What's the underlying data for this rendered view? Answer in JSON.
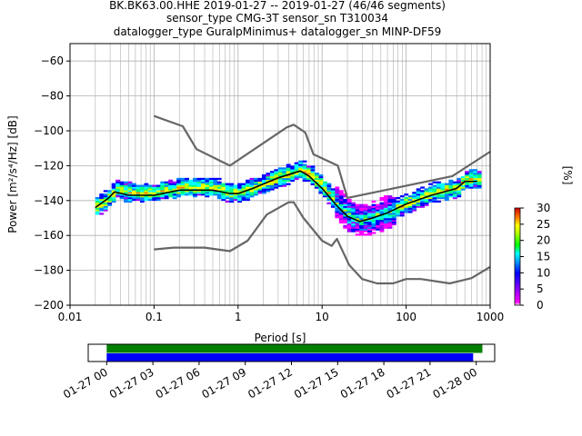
{
  "title": {
    "line1": "BK.BK63.00.HHE   2019-01-27 -- 2019-01-27  (46/46 segments)",
    "line2": "sensor_type CMG-3T sensor_sn T310034",
    "line3": "datalogger_type GuralpMinimus+ datalogger_sn MINP-DF59"
  },
  "chart_data": [
    {
      "type": "heatmap",
      "xlabel": "Period [s]",
      "ylabel": "Power [m²/s⁴/Hz] [dB]",
      "x_scale": "log",
      "xlim": [
        0.01,
        1000
      ],
      "ylim": [
        -200,
        -50
      ],
      "grid": true,
      "x_ticks": [
        0.01,
        0.1,
        1,
        10,
        100,
        1000
      ],
      "x_tick_labels": [
        "0.01",
        "0.1",
        "1",
        "10",
        "100",
        "1000"
      ],
      "y_ticks": [
        -200,
        -180,
        -160,
        -140,
        -120,
        -100,
        -80,
        -60
      ],
      "y_tick_labels": [
        "−200",
        "−180",
        "−160",
        "−140",
        "−120",
        "−100",
        "−80",
        "−60"
      ],
      "colorbar": {
        "label": "[%]",
        "range": [
          0,
          30
        ],
        "ticks": [
          0,
          5,
          10,
          15,
          20,
          25,
          30
        ],
        "tick_labels": [
          "0",
          "5",
          "10",
          "15",
          "20",
          "25",
          "30"
        ]
      },
      "series": [
        {
          "kind": "nlnm",
          "color": "#666666",
          "points": [
            [
              0.1,
              -168
            ],
            [
              0.17,
              -167
            ],
            [
              0.4,
              -167
            ],
            [
              0.8,
              -169
            ],
            [
              1.3,
              -163
            ],
            [
              2.2,
              -148
            ],
            [
              4.0,
              -141
            ],
            [
              4.6,
              -141
            ],
            [
              6.0,
              -150
            ],
            [
              10,
              -163
            ],
            [
              13,
              -166
            ],
            [
              15,
              -162
            ],
            [
              21,
              -177
            ],
            [
              30,
              -185
            ],
            [
              45,
              -187.5
            ],
            [
              70,
              -187.5
            ],
            [
              100,
              -185
            ],
            [
              150,
              -185
            ],
            [
              330,
              -187.5
            ],
            [
              600,
              -184.5
            ],
            [
              1000,
              -178
            ]
          ]
        },
        {
          "kind": "nhnm",
          "color": "#666666",
          "points": [
            [
              0.1,
              -91.5
            ],
            [
              0.22,
              -97.4
            ],
            [
              0.32,
              -110.5
            ],
            [
              0.8,
              -120
            ],
            [
              3.8,
              -98
            ],
            [
              4.6,
              -96.5
            ],
            [
              6.3,
              -101
            ],
            [
              7.9,
              -113.5
            ],
            [
              15.4,
              -120
            ],
            [
              20,
              -138.5
            ],
            [
              354.8,
              -126
            ],
            [
              1000,
              -112
            ]
          ]
        },
        {
          "kind": "mean",
          "color": "#000000",
          "points": [
            [
              0.02,
              -144
            ],
            [
              0.028,
              -139
            ],
            [
              0.034,
              -135
            ],
            [
              0.05,
              -137
            ],
            [
              0.1,
              -137
            ],
            [
              0.2,
              -134
            ],
            [
              0.5,
              -134
            ],
            [
              0.8,
              -136
            ],
            [
              1.0,
              -136
            ],
            [
              1.5,
              -133
            ],
            [
              3.0,
              -127
            ],
            [
              5.5,
              -123
            ],
            [
              7.0,
              -126
            ],
            [
              10,
              -133
            ],
            [
              15,
              -143
            ],
            [
              20,
              -149
            ],
            [
              28,
              -152
            ],
            [
              40,
              -150
            ],
            [
              60,
              -147
            ],
            [
              100,
              -142
            ],
            [
              200,
              -137
            ],
            [
              400,
              -133
            ],
            [
              500,
              -129
            ],
            [
              700,
              -129
            ]
          ]
        }
      ],
      "histogram_ridge": [
        [
          0.02,
          -144
        ],
        [
          0.028,
          -139
        ],
        [
          0.034,
          -134
        ],
        [
          0.05,
          -136
        ],
        [
          0.1,
          -136
        ],
        [
          0.2,
          -133
        ],
        [
          0.5,
          -133
        ],
        [
          0.8,
          -136
        ],
        [
          1.0,
          -136
        ],
        [
          1.5,
          -133
        ],
        [
          3.0,
          -127
        ],
        [
          5.5,
          -123
        ],
        [
          7.0,
          -126
        ],
        [
          10,
          -133
        ],
        [
          15,
          -143
        ],
        [
          20,
          -149
        ],
        [
          28,
          -152
        ],
        [
          40,
          -150
        ],
        [
          60,
          -147
        ],
        [
          100,
          -142
        ],
        [
          200,
          -136
        ],
        [
          400,
          -133
        ],
        [
          500,
          -128
        ],
        [
          700,
          -128
        ]
      ],
      "histogram_spread_db": 14
    },
    {
      "type": "bar",
      "name": "data coverage",
      "x_tick_labels": [
        "01-27 00",
        "01-27 03",
        "01-27 06",
        "01-27 09",
        "01-27 12",
        "01-27 15",
        "01-27 18",
        "01-27 21",
        "01-28 00"
      ],
      "x_range_hours": [
        -1.2,
        25.2
      ],
      "bars": [
        {
          "color": "#008000",
          "start_hours": 0,
          "end_hours": 24.4
        },
        {
          "color": "#0000ff",
          "start_hours": 0,
          "end_hours": 23.8
        }
      ]
    }
  ]
}
